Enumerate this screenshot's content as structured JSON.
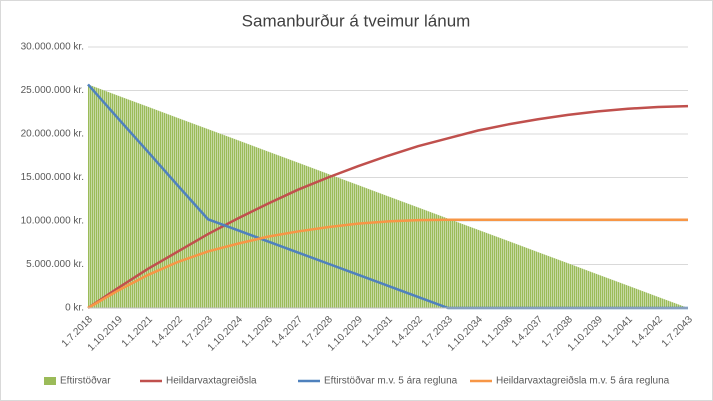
{
  "chart_data": {
    "type": "line",
    "title": "Samanburður á tveimur lánum",
    "categories": [
      "1.7.2018",
      "1.10.2019",
      "1.1.2021",
      "1.4.2022",
      "1.7.2023",
      "1.10.2024",
      "1.1.2026",
      "1.4.2027",
      "1.7.2028",
      "1.10.2029",
      "1.1.2031",
      "1.4.2032",
      "1.7.2033",
      "1.10.2034",
      "1.1.2036",
      "1.4.2037",
      "1.7.2038",
      "1.10.2039",
      "1.1.2041",
      "1.4.2042",
      "1.7.2043"
    ],
    "series": [
      {
        "name": "Eftirstöðvar",
        "type": "area",
        "color": "#9bbb59",
        "values": [
          25700000,
          24415000,
          23130000,
          21845000,
          20560000,
          19275000,
          17990000,
          16705000,
          15420000,
          14135000,
          12850000,
          11565000,
          10280000,
          8995000,
          7710000,
          6425000,
          5140000,
          3855000,
          2570000,
          1285000,
          0
        ]
      },
      {
        "name": "Heildarvaxtagreiðsla",
        "type": "line",
        "color": "#c0504d",
        "values": [
          0,
          2300000,
          4500000,
          6500000,
          8500000,
          10300000,
          12000000,
          13600000,
          15000000,
          16300000,
          17500000,
          18600000,
          19500000,
          20400000,
          21100000,
          21700000,
          22200000,
          22600000,
          22900000,
          23100000,
          23200000
        ]
      },
      {
        "name": "Eftirstöðvar m.v. 5 ára regluna",
        "type": "line",
        "color": "#4f81bd",
        "values": [
          25700000,
          21800000,
          17950000,
          14050000,
          10200000,
          8925000,
          7650000,
          6375000,
          5100000,
          3825000,
          2550000,
          1275000,
          0,
          0,
          0,
          0,
          0,
          0,
          0,
          0,
          0
        ]
      },
      {
        "name": "Heildarvaxtagreiðsla m.v. 5 ára regluna",
        "type": "line",
        "color": "#f79646",
        "values": [
          0,
          2000000,
          3800000,
          5300000,
          6500000,
          7400000,
          8200000,
          8800000,
          9300000,
          9700000,
          9950000,
          10100000,
          10150000,
          10150000,
          10150000,
          10150000,
          10150000,
          10150000,
          10150000,
          10150000,
          10150000
        ]
      }
    ],
    "ylim": [
      0,
      30000000
    ],
    "yticks": [
      {
        "value": 0,
        "label": "0 kr."
      },
      {
        "value": 5000000,
        "label": "5.000.000 kr."
      },
      {
        "value": 10000000,
        "label": "10.000.000 kr."
      },
      {
        "value": 15000000,
        "label": "15.000.000 kr."
      },
      {
        "value": 20000000,
        "label": "20.000.000 kr."
      },
      {
        "value": 25000000,
        "label": "25.000.000 kr."
      },
      {
        "value": 30000000,
        "label": "30.000.000 kr."
      }
    ],
    "grid": true
  }
}
